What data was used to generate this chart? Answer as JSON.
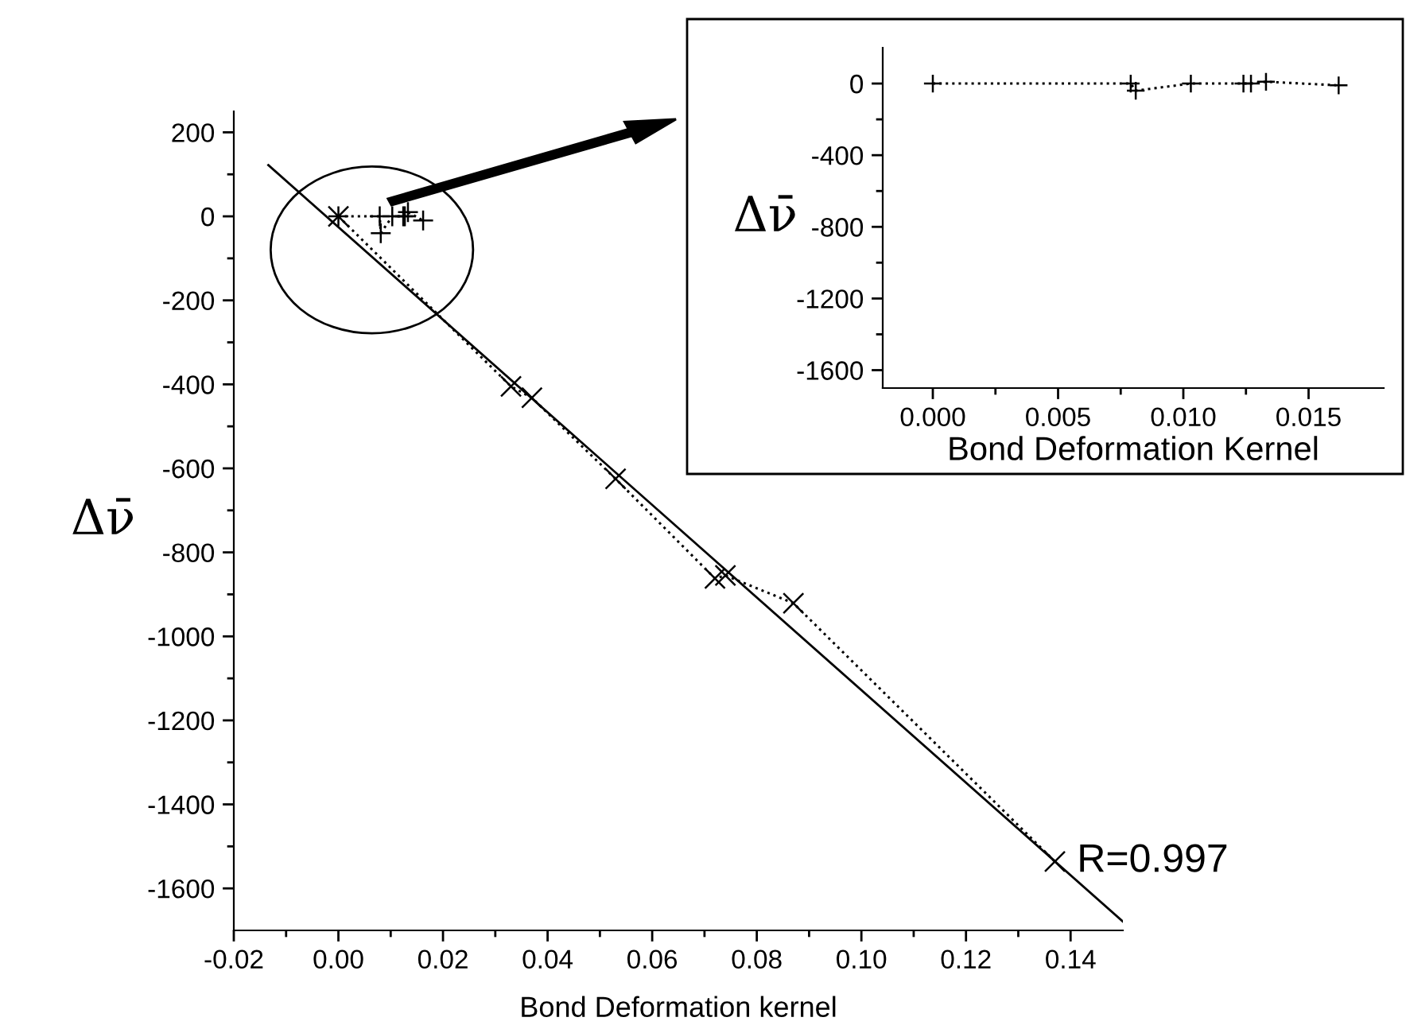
{
  "chart_data": [
    {
      "type": "scatter",
      "xlabel": "Bond Deformation kernel",
      "ylabel": "Δν̄",
      "xlim": [
        -0.02,
        0.15
      ],
      "xticks": [
        {
          "value": -0.02,
          "label": "-0.02"
        },
        {
          "value": 0.0,
          "label": "0.00"
        },
        {
          "value": 0.02,
          "label": "0.02"
        },
        {
          "value": 0.04,
          "label": "0.04"
        },
        {
          "value": 0.06,
          "label": "0.06"
        },
        {
          "value": 0.08,
          "label": "0.08"
        },
        {
          "value": 0.1,
          "label": "0.10"
        },
        {
          "value": 0.12,
          "label": "0.12"
        },
        {
          "value": 0.14,
          "label": "0.14"
        }
      ],
      "ylim": [
        -1700,
        250
      ],
      "yticks": [
        200,
        0,
        -200,
        -400,
        -600,
        -800,
        -1000,
        -1200,
        -1400,
        -1600
      ],
      "grid": false,
      "legend": false,
      "series": [
        {
          "type": "line",
          "marker": "cross",
          "line_style": "dotted",
          "color": "#000000",
          "x": [
            0,
            0.033,
            0.037,
            0.053,
            0.072,
            0.074,
            0.087,
            0.137
          ],
          "values": [
            0,
            -405,
            -432,
            -625,
            -862,
            -855,
            -921,
            -1536
          ]
        },
        {
          "type": "line",
          "marker": "plus",
          "line_style": "dotted",
          "color": "#000000",
          "x": [
            0,
            0.0079,
            0.0081,
            0.0103,
            0.0124,
            0.0127,
            0.0133,
            0.0162
          ],
          "values": [
            0,
            0,
            -40,
            0,
            0,
            0,
            10,
            -10
          ]
        },
        {
          "type": "line",
          "marker": "none",
          "line_style": "solid",
          "color": "#000000",
          "x": [
            -0.0134,
            0.15
          ],
          "values": [
            122,
            -1679
          ]
        }
      ],
      "annotations": [
        {
          "text": "R=0.997",
          "x": 0.137,
          "y": -1536
        }
      ]
    },
    {
      "type": "line",
      "xlabel": "Bond Deformation Kernel",
      "ylabel": "Δν̄",
      "xlim": [
        -0.002,
        0.018
      ],
      "xticks": [
        {
          "value": 0.0,
          "label": "0.000"
        },
        {
          "value": 0.005,
          "label": "0.005"
        },
        {
          "value": 0.01,
          "label": "0.010"
        },
        {
          "value": 0.015,
          "label": "0.015"
        }
      ],
      "ylim": [
        -1700,
        200
      ],
      "yticks": [
        0,
        -400,
        -800,
        -1200,
        -1600
      ],
      "grid": false,
      "legend": false,
      "series": [
        {
          "marker": "plus",
          "line_style": "dotted",
          "color": "#000000",
          "x": [
            0,
            0.0079,
            0.0081,
            0.0103,
            0.0124,
            0.0127,
            0.0133,
            0.0162
          ],
          "values": [
            0,
            0,
            -40,
            0,
            0,
            0,
            10,
            -10
          ]
        }
      ]
    }
  ]
}
